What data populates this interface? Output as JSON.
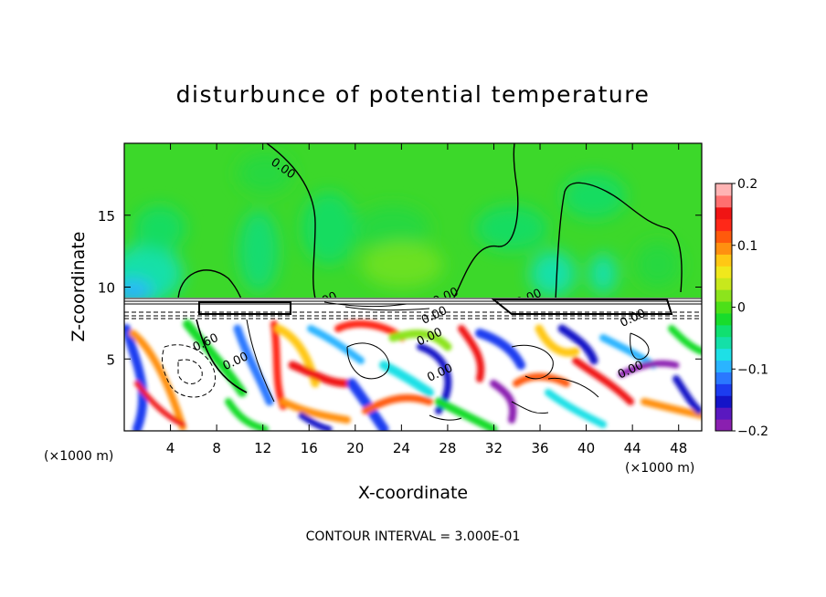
{
  "chart_data": {
    "type": "heatmap",
    "title": "disturbunce of potential temperature",
    "xlabel": "X-coordinate",
    "ylabel": "Z-coordinate",
    "x_unit_left": "(×1000 m)",
    "x_unit_right": "(×1000 m)",
    "x_ticks": [
      "4",
      "8",
      "12",
      "16",
      "20",
      "24",
      "28",
      "32",
      "36",
      "40",
      "44",
      "48"
    ],
    "x_tick_values": [
      4,
      8,
      12,
      16,
      20,
      24,
      28,
      32,
      36,
      40,
      44,
      48
    ],
    "y_ticks": [
      "5",
      "10",
      "15"
    ],
    "y_tick_values": [
      5,
      10,
      15
    ],
    "xlim": [
      0,
      50
    ],
    "ylim": [
      0,
      20
    ],
    "colorbar": {
      "tick_labels": [
        "0.2",
        "0.1",
        "0",
        "−0.1",
        "−0.2"
      ],
      "tick_values": [
        0.2,
        0.1,
        0,
        -0.1,
        -0.2
      ],
      "range": [
        -0.2,
        0.2
      ],
      "colors": [
        "#8a1fb0",
        "#5a18c0",
        "#1414c8",
        "#1c3cf0",
        "#2a78ff",
        "#2ab4ff",
        "#1ee0e6",
        "#14e0a8",
        "#10e070",
        "#18dc2c",
        "#4ce018",
        "#8ce41c",
        "#c8e81c",
        "#f0e81c",
        "#ffc814",
        "#ff9010",
        "#ff5a0c",
        "#ff2818",
        "#f01414",
        "#ff7070",
        "#ffb4b4"
      ]
    },
    "contour_labels": [
      {
        "text": "0.00",
        "x": 13.8,
        "y": 18.3
      },
      {
        "text": "0.00",
        "x": 17.3,
        "y": 9.1
      },
      {
        "text": "0.00",
        "x": 27.8,
        "y": 9.4
      },
      {
        "text": "0.00",
        "x": 26.8,
        "y": 8.1
      },
      {
        "text": "0.00",
        "x": 26.4,
        "y": 6.6
      },
      {
        "text": "0.00",
        "x": 27.3,
        "y": 4.1
      },
      {
        "text": "0.00",
        "x": 35.0,
        "y": 9.3
      },
      {
        "text": "0.00",
        "x": 44.0,
        "y": 7.9
      },
      {
        "text": "0.00",
        "x": 43.8,
        "y": 4.3
      },
      {
        "text": "0.60",
        "x": 7.0,
        "y": 6.2
      },
      {
        "text": "0.00",
        "x": 9.6,
        "y": 4.9
      }
    ],
    "footer": "CONTOUR INTERVAL = 3.000E-01"
  }
}
